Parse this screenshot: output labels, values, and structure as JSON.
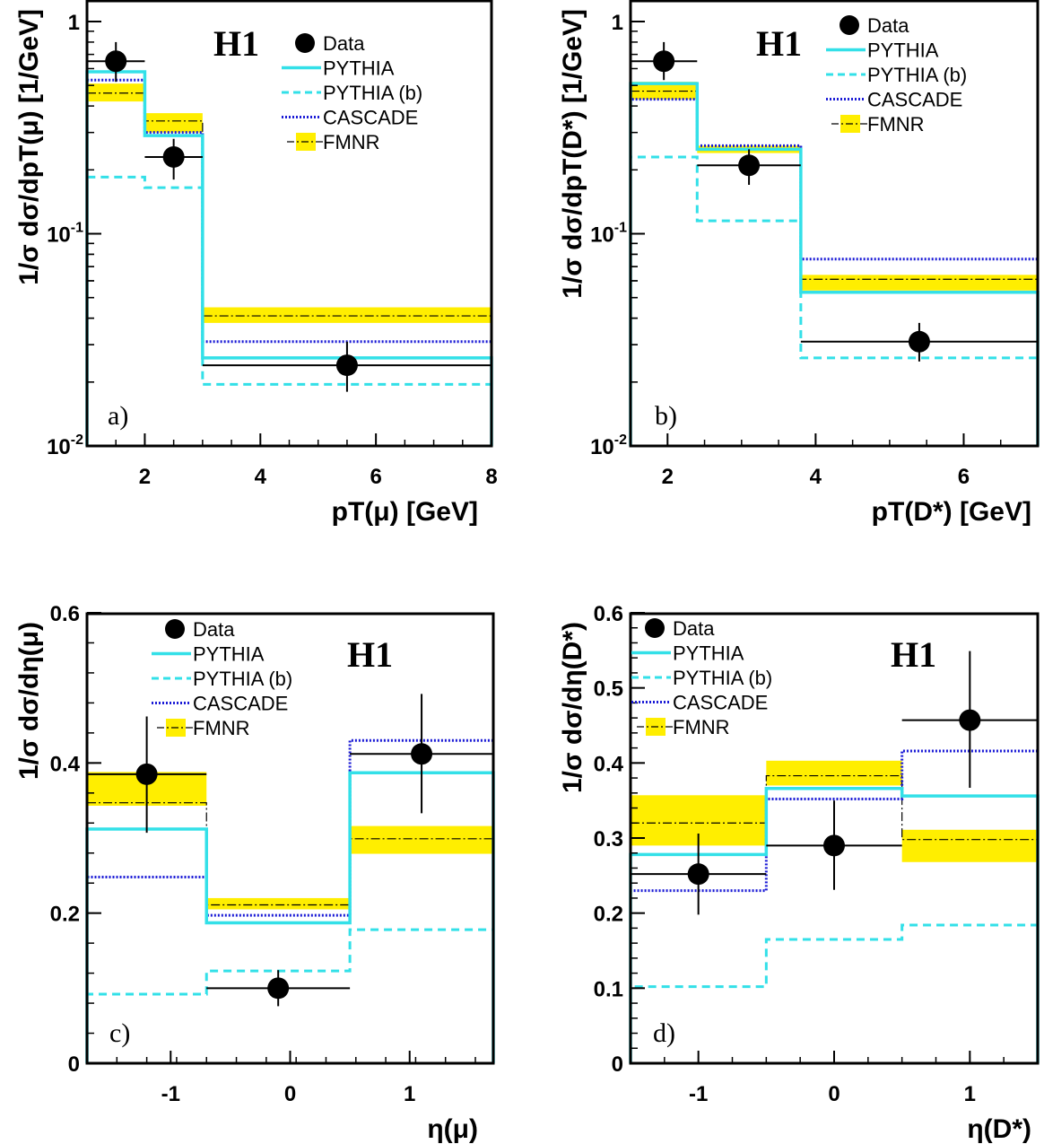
{
  "chart_data": [
    {
      "type": "line",
      "panel_label": "a)",
      "badge": "H1",
      "ylabel": "1/σ dσ/dpT(μ) [1/GeV]",
      "xlabel": "pT(μ) [GeV]",
      "xlim": [
        1,
        8
      ],
      "ylim": [
        0.01,
        1.2
      ],
      "yscale": "log",
      "x_ticks": [
        2,
        4,
        6,
        8
      ],
      "y_ticks": [
        {
          "v": 1,
          "base": "1",
          "exp": ""
        },
        {
          "v": 0.1,
          "base": "10",
          "exp": "-1"
        },
        {
          "v": 0.01,
          "base": "10",
          "exp": "-2"
        }
      ],
      "bins": [
        1,
        2,
        3,
        8
      ],
      "legend": [
        "Data",
        "PYTHIA",
        "PYTHIA (b)",
        "CASCADE",
        "FMNR"
      ],
      "data": {
        "x": [
          1.5,
          2.5,
          5.5
        ],
        "y": [
          0.65,
          0.23,
          0.024
        ],
        "ylo": [
          0.52,
          0.18,
          0.018
        ],
        "yhi": [
          0.8,
          0.28,
          0.031
        ]
      },
      "pythia": [
        0.58,
        0.29,
        0.026
      ],
      "pythia_b": [
        0.185,
        0.165,
        0.0195
      ],
      "cascade": [
        0.53,
        0.3,
        0.031
      ],
      "fmnr": {
        "center": [
          0.46,
          0.34,
          0.041
        ],
        "lo": [
          0.42,
          0.3,
          0.038
        ],
        "hi": [
          0.51,
          0.37,
          0.045
        ]
      }
    },
    {
      "type": "line",
      "panel_label": "b)",
      "badge": "H1",
      "ylabel": "1/σ dσ/dpT(D*) [1/GeV]",
      "xlabel": "pT(D*) [GeV]",
      "xlim": [
        1.5,
        7
      ],
      "ylim": [
        0.01,
        1.2
      ],
      "yscale": "log",
      "x_ticks": [
        2,
        4,
        6
      ],
      "y_ticks": [
        {
          "v": 1,
          "base": "1",
          "exp": ""
        },
        {
          "v": 0.1,
          "base": "10",
          "exp": "-1"
        },
        {
          "v": 0.01,
          "base": "10",
          "exp": "-2"
        }
      ],
      "bins": [
        1.5,
        2.4,
        3.8,
        7
      ],
      "legend": [
        "Data",
        "PYTHIA",
        "PYTHIA (b)",
        "CASCADE",
        "FMNR"
      ],
      "data": {
        "x": [
          1.95,
          3.1,
          5.4
        ],
        "y": [
          0.65,
          0.21,
          0.031
        ],
        "ylo": [
          0.53,
          0.17,
          0.025
        ],
        "yhi": [
          0.8,
          0.25,
          0.038
        ]
      },
      "pythia": [
        0.51,
        0.25,
        0.053
      ],
      "pythia_b": [
        0.23,
        0.115,
        0.026
      ],
      "cascade": [
        0.43,
        0.26,
        0.076
      ],
      "fmnr": {
        "center": [
          0.47,
          0.25,
          0.061
        ],
        "lo": [
          0.43,
          0.24,
          0.054
        ],
        "hi": [
          0.52,
          0.26,
          0.064
        ]
      }
    },
    {
      "type": "line",
      "panel_label": "c)",
      "badge": "H1",
      "ylabel": "1/σ dσ/dη(μ)",
      "xlabel": "η(μ)",
      "xlim": [
        -1.7,
        1.7
      ],
      "ylim": [
        0,
        0.6
      ],
      "yscale": "linear",
      "x_ticks": [
        -1,
        0,
        1
      ],
      "y_ticks": [
        {
          "v": 0,
          "base": "0",
          "exp": ""
        },
        {
          "v": 0.2,
          "base": "0.2",
          "exp": ""
        },
        {
          "v": 0.4,
          "base": "0.4",
          "exp": ""
        },
        {
          "v": 0.6,
          "base": "0.6",
          "exp": ""
        }
      ],
      "bins": [
        -1.7,
        -0.7,
        0.5,
        1.7
      ],
      "legend": [
        "Data",
        "PYTHIA",
        "PYTHIA (b)",
        "CASCADE",
        "FMNR"
      ],
      "data": {
        "x": [
          -1.2,
          -0.1,
          1.1
        ],
        "y": [
          0.385,
          0.1,
          0.412
        ],
        "ylo": [
          0.307,
          0.076,
          0.333
        ],
        "yhi": [
          0.462,
          0.124,
          0.492
        ]
      },
      "pythia": [
        0.312,
        0.187,
        0.387
      ],
      "pythia_b": [
        0.092,
        0.123,
        0.178
      ],
      "cascade": [
        0.248,
        0.197,
        0.43
      ],
      "fmnr": {
        "center": [
          0.347,
          0.211,
          0.299
        ],
        "lo": [
          0.343,
          0.205,
          0.279
        ],
        "hi": [
          0.388,
          0.22,
          0.316
        ]
      }
    },
    {
      "type": "line",
      "panel_label": "d)",
      "badge": "H1",
      "ylabel": "1/σ dσ/dη(D*)",
      "xlabel": "η(D*)",
      "xlim": [
        -1.5,
        1.5
      ],
      "ylim": [
        0,
        0.6
      ],
      "yscale": "linear",
      "x_ticks": [
        -1,
        0,
        1
      ],
      "y_ticks": [
        {
          "v": 0,
          "base": "0",
          "exp": ""
        },
        {
          "v": 0.1,
          "base": "0.1",
          "exp": ""
        },
        {
          "v": 0.2,
          "base": "0.2",
          "exp": ""
        },
        {
          "v": 0.3,
          "base": "0.3",
          "exp": ""
        },
        {
          "v": 0.4,
          "base": "0.4",
          "exp": ""
        },
        {
          "v": 0.5,
          "base": "0.5",
          "exp": ""
        },
        {
          "v": 0.6,
          "base": "0.6",
          "exp": ""
        }
      ],
      "bins": [
        -1.5,
        -0.5,
        0.5,
        1.5
      ],
      "legend": [
        "Data",
        "PYTHIA",
        "PYTHIA (b)",
        "CASCADE",
        "FMNR"
      ],
      "data": {
        "x": [
          -1.0,
          0.0,
          1.0
        ],
        "y": [
          0.252,
          0.29,
          0.457
        ],
        "ylo": [
          0.198,
          0.231,
          0.367
        ],
        "yhi": [
          0.306,
          0.35,
          0.549
        ]
      },
      "pythia": [
        0.278,
        0.366,
        0.356
      ],
      "pythia_b": [
        0.102,
        0.165,
        0.184
      ],
      "cascade": [
        0.23,
        0.352,
        0.416
      ],
      "fmnr": {
        "center": [
          0.32,
          0.383,
          0.298
        ],
        "lo": [
          0.29,
          0.37,
          0.268
        ],
        "hi": [
          0.357,
          0.403,
          0.311
        ]
      }
    }
  ],
  "colors": {
    "data": "#000000",
    "pythia": "#33e0e8",
    "pythia_b": "#33e0e8",
    "cascade": "#1a1ad6",
    "fmnr_band": "#ffee00",
    "fmnr_line": "#000000"
  }
}
